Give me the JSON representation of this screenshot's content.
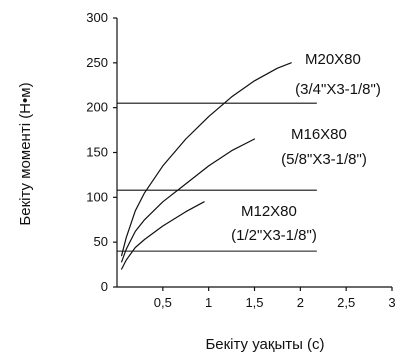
{
  "chart_data": {
    "type": "line",
    "title": "",
    "xlabel": "Бекіту уақыты (с)",
    "ylabel": "Бекіту моменті (Н•м)",
    "xlim": [
      0,
      3
    ],
    "ylim": [
      0,
      300
    ],
    "x_ticks": [
      "0,5",
      "1",
      "1,5",
      "2",
      "2,5",
      "3"
    ],
    "y_ticks": [
      "0",
      "50",
      "100",
      "150",
      "200",
      "250",
      "300"
    ],
    "grid": false,
    "legend": "none",
    "series": [
      {
        "name": "M20X80",
        "subtitle": "(3/4\"X3-1/8\")",
        "x": [
          0.05,
          0.1,
          0.2,
          0.3,
          0.5,
          0.75,
          1.0,
          1.25,
          1.5,
          1.75,
          1.9
        ],
        "y": [
          35,
          55,
          85,
          105,
          135,
          165,
          190,
          212,
          230,
          244,
          250
        ]
      },
      {
        "name": "M16X80",
        "subtitle": "(5/8\"X3-1/8\")",
        "x": [
          0.05,
          0.1,
          0.2,
          0.3,
          0.5,
          0.75,
          1.0,
          1.25,
          1.5
        ],
        "y": [
          28,
          42,
          62,
          75,
          95,
          115,
          135,
          152,
          165
        ]
      },
      {
        "name": "M12X80",
        "subtitle": "(1/2\"X3-1/8\")",
        "x": [
          0.05,
          0.1,
          0.2,
          0.3,
          0.5,
          0.75,
          0.95
        ],
        "y": [
          20,
          30,
          44,
          53,
          68,
          84,
          95
        ]
      }
    ],
    "reference_lines": [
      205,
      108,
      40
    ],
    "colors": {
      "line": "#111111",
      "background": "#ffffff"
    }
  }
}
